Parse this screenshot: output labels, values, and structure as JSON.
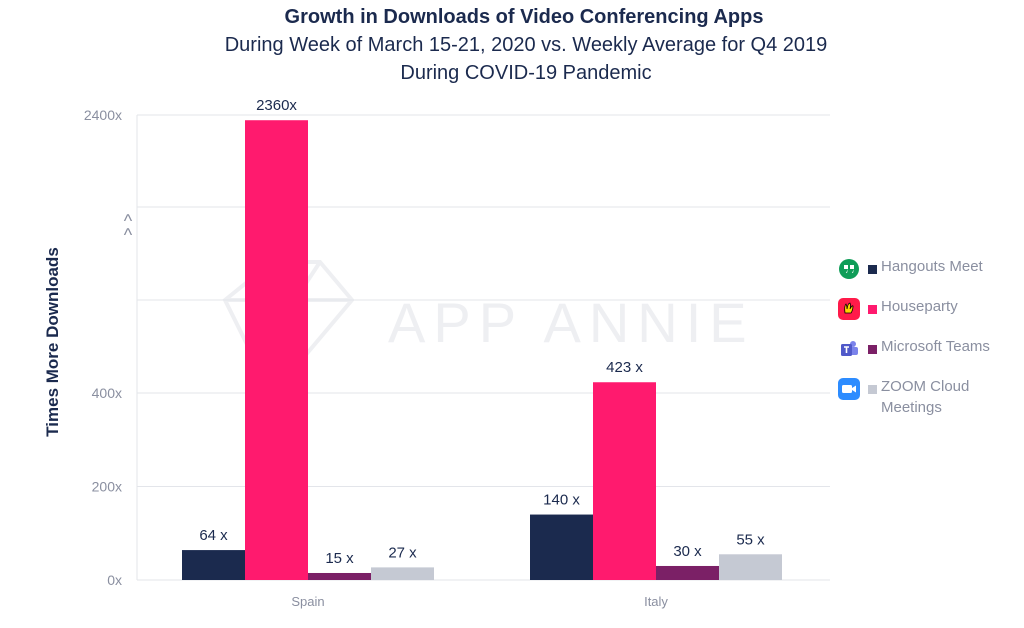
{
  "chart_data": {
    "type": "bar",
    "title": "Growth in Downloads of Video Conferencing Apps",
    "subtitle": [
      "During Week of March 15-21, 2020 vs. Weekly Average for Q4 2019",
      "During COVID-19 Pandemic"
    ],
    "xlabel": "",
    "ylabel": "Times More Downloads",
    "categories": [
      "Spain",
      "Italy"
    ],
    "series": [
      {
        "name": "Hangouts Meet",
        "color": "#1b2a4e",
        "values": [
          64,
          140
        ],
        "labels": [
          "64 x",
          "140 x"
        ]
      },
      {
        "name": "Houseparty",
        "color": "#ff1a6e",
        "values": [
          2360,
          423
        ],
        "labels": [
          "2360x",
          "423 x"
        ]
      },
      {
        "name": "Microsoft Teams",
        "color": "#7b2066",
        "values": [
          15,
          30
        ],
        "labels": [
          "15 x",
          "30 x"
        ]
      },
      {
        "name": "ZOOM Cloud Meetings",
        "color": "#c5c9d3",
        "values": [
          27,
          55
        ],
        "labels": [
          "27 x",
          "55 x"
        ]
      }
    ],
    "y_ticks": [
      "0x",
      "200x",
      "400x",
      "2400x"
    ],
    "axis_break": true,
    "axis_break_symbol": "^",
    "grid": true,
    "legend_position": "right",
    "watermark": "APP ANNIE"
  },
  "legend_icons": [
    "hangouts-meet-icon",
    "houseparty-icon",
    "microsoft-teams-icon",
    "zoom-icon"
  ]
}
